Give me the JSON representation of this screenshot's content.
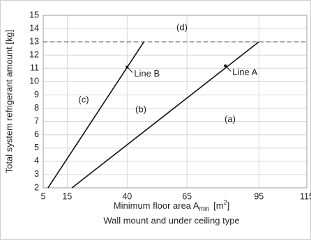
{
  "chart_data": {
    "type": "line",
    "ylabel": "Total system refrigerant amount [kg]",
    "xlabel": {
      "text": "Minimum floor area A",
      "sub": "min",
      "unit": "[m",
      "sup": "2",
      "close": "]"
    },
    "subtitle": "Wall mount and under ceiling type",
    "xlim": [
      5,
      115
    ],
    "xticks": [
      5,
      15,
      40,
      65,
      95,
      115
    ],
    "ylim": [
      2,
      15
    ],
    "yticks": [
      2,
      3,
      4,
      5,
      6,
      7,
      8,
      9,
      10,
      11,
      12,
      13,
      14,
      15
    ],
    "grid": true,
    "hline": 13,
    "series": [
      {
        "name": "Line A",
        "color": "#111111",
        "x": [
          17,
          95
        ],
        "values": [
          2,
          13
        ],
        "label_point": [
          81,
          11.2
        ]
      },
      {
        "name": "Line B",
        "color": "#111111",
        "x": [
          7,
          47
        ],
        "values": [
          2,
          13
        ],
        "label_point": [
          40,
          11.1
        ]
      }
    ],
    "regions": [
      "(a)",
      "(b)",
      "(c)",
      "(d)"
    ]
  }
}
